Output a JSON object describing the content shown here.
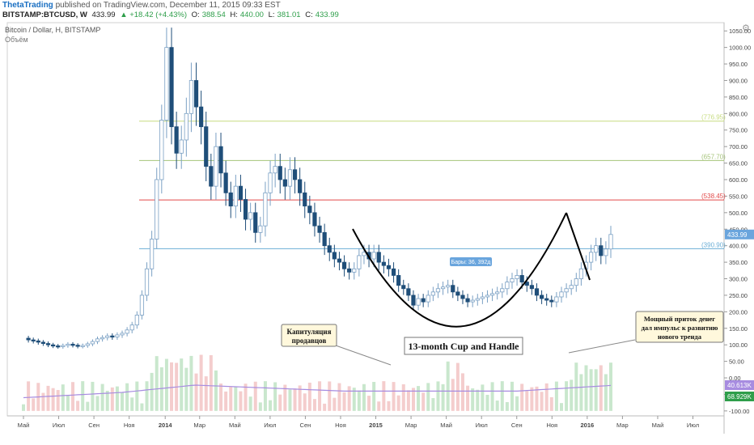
{
  "header": {
    "author": "ThetaTrading",
    "published": "published on TradingView.com, December 11, 2015 09:33 EST",
    "symbol": "BITSTAMP:BTCUSD, W",
    "price": "433.99",
    "change": "▲ +18.42 (+4.43%)",
    "ohlc": [
      {
        "k": "O:",
        "v": "388.54"
      },
      {
        "k": "H:",
        "v": "440.00"
      },
      {
        "k": "L:",
        "v": "381.01"
      },
      {
        "k": "C:",
        "v": "433.99"
      }
    ]
  },
  "legend": {
    "title": "Bitcoin / Dollar, H, BITSTAMP",
    "volume": "Объём"
  },
  "colors": {
    "up": "#a7c0d8",
    "down": "#1f4e79",
    "volUp": "#bfe3c4",
    "volDown": "#f2c4c4",
    "fib1": "#c7dc80",
    "fib2": "#a6c47a",
    "fib3": "#e24a4a",
    "fib4": "#6baed6",
    "ma": "#a78ce0",
    "accent": "#1a6fc2"
  },
  "chart_data": {
    "type": "candlestick",
    "title": "Bitcoin / Dollar, H, BITSTAMP",
    "y_ticks": [
      "1050.00",
      "1000.00",
      "950.00",
      "900.00",
      "850.00",
      "800.00",
      "750.00",
      "700.00",
      "650.00",
      "600.00",
      "550.00",
      "500.00",
      "450.00",
      "400.00",
      "350.00",
      "300.00",
      "250.00",
      "200.00",
      "150.00",
      "100.00",
      "50.00",
      "0.00",
      "-50.00",
      "-100.00"
    ],
    "y_tick_values": [
      1050,
      1000,
      950,
      900,
      850,
      800,
      750,
      700,
      650,
      600,
      550,
      500,
      450,
      400,
      350,
      300,
      250,
      200,
      150,
      100,
      50,
      0,
      -50,
      -100
    ],
    "ylim": [
      -115,
      1075
    ],
    "x_ticks": [
      {
        "label": "Май",
        "i": 0
      },
      {
        "label": "Июл",
        "i": 8.7
      },
      {
        "label": "Сен",
        "i": 17.4
      },
      {
        "label": "Ноя",
        "i": 26.1
      },
      {
        "label": "2014",
        "i": 35
      },
      {
        "label": "Мар",
        "i": 43.5
      },
      {
        "label": "Май",
        "i": 52.2
      },
      {
        "label": "Июл",
        "i": 60.9
      },
      {
        "label": "Сен",
        "i": 69.6
      },
      {
        "label": "Ноя",
        "i": 78.3
      },
      {
        "label": "2015",
        "i": 87
      },
      {
        "label": "Мар",
        "i": 95.7
      },
      {
        "label": "Май",
        "i": 104.4
      },
      {
        "label": "Июл",
        "i": 113.1
      },
      {
        "label": "Сен",
        "i": 121.8
      },
      {
        "label": "Ноя",
        "i": 130.5
      },
      {
        "label": "2016",
        "i": 139.2
      },
      {
        "label": "Мар",
        "i": 147.9
      },
      {
        "label": "Май",
        "i": 156.6
      },
      {
        "label": "Июл",
        "i": 165.3
      }
    ],
    "fib_levels": [
      {
        "value": 776.95,
        "label": "(776.95)"
      },
      {
        "value": 657.7,
        "label": "(657.70)"
      },
      {
        "value": 538.45,
        "label": "(538.45)"
      },
      {
        "value": 390.9,
        "label": "(390.90)"
      }
    ],
    "price_badge": "433.99",
    "volume_badges": [
      "40.613K",
      "68.929K"
    ],
    "bars_label": "Бары: 36, 392д",
    "annotations": [
      {
        "text": [
          "Капитуляция",
          "продавцов"
        ]
      },
      {
        "text": [
          "13-month Cup and Handle"
        ]
      },
      {
        "text": [
          "Мощный приток денег",
          "дал импульс к развитию",
          "нового тренда"
        ]
      }
    ],
    "closes": [
      120,
      115,
      112,
      108,
      104,
      100,
      97,
      95,
      98,
      102,
      99,
      96,
      98,
      103,
      110,
      118,
      122,
      127,
      124,
      130,
      135,
      145,
      160,
      190,
      250,
      330,
      420,
      600,
      780,
      1000,
      760,
      680,
      720,
      800,
      900,
      820,
      760,
      640,
      580,
      700,
      620,
      560,
      520,
      580,
      540,
      480,
      500,
      440,
      460,
      560,
      620,
      640,
      600,
      580,
      630,
      600,
      560,
      520,
      500,
      460,
      440,
      400,
      380,
      360,
      350,
      330,
      320,
      330,
      370,
      380,
      360,
      380,
      350,
      340,
      330,
      310,
      280,
      270,
      250,
      220,
      240,
      230,
      250,
      260,
      270,
      275,
      280,
      260,
      250,
      240,
      230,
      235,
      240,
      245,
      250,
      255,
      260,
      270,
      290,
      300,
      310,
      290,
      280,
      270,
      250,
      240,
      235,
      230,
      245,
      260,
      270,
      280,
      300,
      330,
      350,
      380,
      400,
      370,
      390,
      433.99
    ],
    "trend_line": [],
    "cup_curve": [],
    "volume_scale_note": ""
  }
}
